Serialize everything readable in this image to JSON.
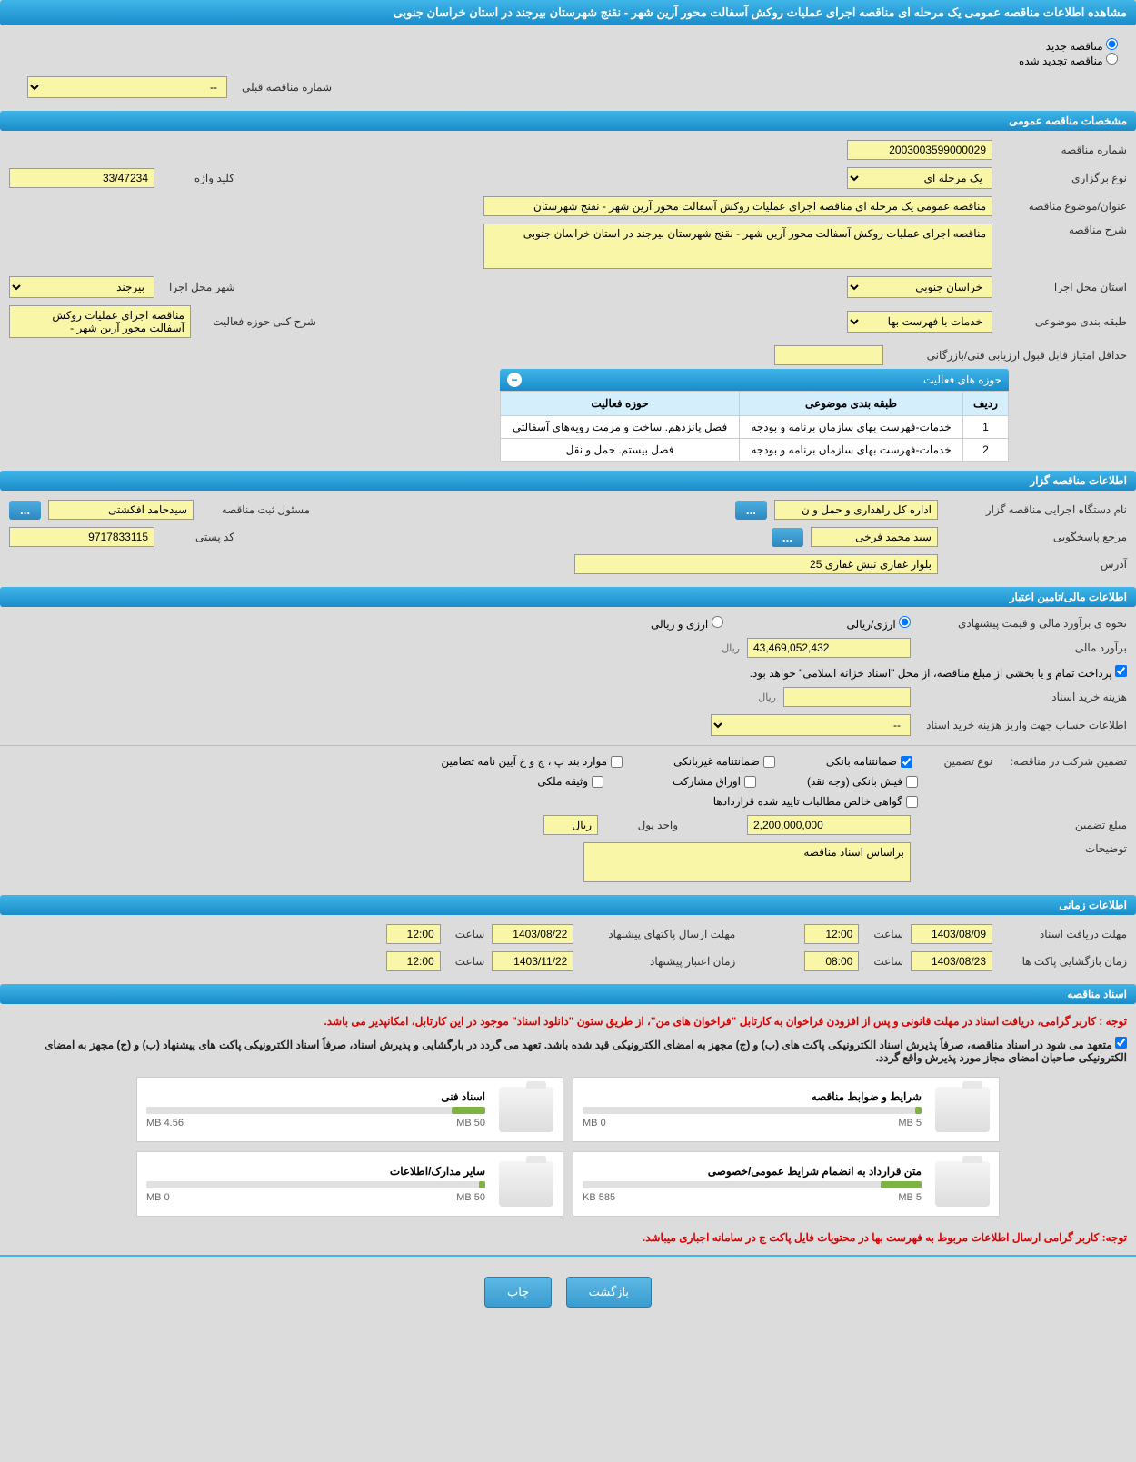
{
  "header_title": "مشاهده اطلاعات مناقصه عمومی یک مرحله ای مناقصه اجرای عملیات روکش آسفالت محور آرین شهر - نقنج شهرستان بیرجند در استان خراسان جنوبی",
  "radio_new": "مناقصه جدید",
  "radio_renewed": "مناقصه تجدید شده",
  "prev_number_label": "شماره مناقصه قبلی",
  "prev_number_value": "--",
  "section_general": "مشخصات مناقصه عمومی",
  "tender_number_label": "شماره مناقصه",
  "tender_number_value": "2003003599000029",
  "holding_type_label": "نوع برگزاری",
  "holding_type_value": "یک مرحله ای",
  "keyword_label": "کلید واژه",
  "keyword_value": "33/47234",
  "subject_label": "عنوان/موضوع مناقصه",
  "subject_value": "مناقصه عمومی یک مرحله ای مناقصه اجرای عملیات روکش آسفالت محور آرین شهر - نقنج شهرستان",
  "description_label": "شرح مناقصه",
  "description_value": "مناقصه اجرای عملیات روکش آسفالت محور آرین شهر - نقنج شهرستان بیرجند در استان خراسان جنوبی",
  "exec_province_label": "استان محل اجرا",
  "exec_province_value": "خراسان جنوبی",
  "exec_city_label": "شهر محل اجرا",
  "exec_city_value": "بیرجند",
  "subject_class_label": "طبقه بندی موضوعی",
  "subject_class_value": "خدمات با فهرست بها",
  "activity_desc_label": "شرح کلی حوزه فعالیت",
  "activity_desc_value": "مناقصه اجرای عملیات روکش آسفالت محور آرین شهر -",
  "min_score_label": "حداقل امتیاز قابل قبول ارزیابی فنی/بازرگانی",
  "activity_table_title": "حوزه های فعالیت",
  "activity_table": {
    "columns": [
      "ردیف",
      "طبقه بندی موضوعی",
      "حوزه فعالیت"
    ],
    "rows": [
      [
        "1",
        "خدمات-فهرست بهای سازمان برنامه و بودجه",
        "فصل پانزدهم. ساخت و مرمت رویه‌های آسفالتی"
      ],
      [
        "2",
        "خدمات-فهرست بهای سازمان برنامه و بودجه",
        "فصل بیستم. حمل و نقل"
      ]
    ]
  },
  "section_organizer": "اطلاعات مناقصه گزار",
  "organizer_name_label": "نام دستگاه اجرایی مناقصه گزار",
  "organizer_name_value": "اداره کل راهداری و حمل و ن",
  "responsible_label": "مسئول ثبت مناقصه",
  "responsible_value": "سیدحامد افکشتی",
  "contact_label": "مرجع پاسخگویی",
  "contact_value": "سید محمد فرخی",
  "postal_label": "کد پستی",
  "postal_value": "9717833115",
  "address_label": "آدرس",
  "address_value": "بلوار غفاری نبش غفاری 25",
  "section_financial": "اطلاعات مالی/تامین اعتبار",
  "estimate_method_label": "نحوه ی برآورد مالی و قیمت پیشنهادی",
  "currency_rial": "ارزی/ریالی",
  "currency_both": "ارزی و ریالی",
  "estimate_label": "برآورد مالی",
  "estimate_value": "43,469,052,432",
  "rial_suffix": "ریال",
  "payment_note": "پرداخت تمام و یا بخشی از مبلغ مناقصه، از محل \"اسناد خزانه اسلامی\" خواهد بود.",
  "doc_cost_label": "هزینه خرید اسناد",
  "account_label": "اطلاعات حساب جهت واریز هزینه خرید اسناد",
  "account_value": "--",
  "guarantee_label": "تضمین شرکت در مناقصه:",
  "guarantee_type_label": "نوع تضمین",
  "guarantee_bank": "ضمانتنامه بانکی",
  "guarantee_nonbank": "ضمانتنامه غیربانکی",
  "guarantee_clauses": "موارد بند پ ، چ و خ آیین نامه تضامین",
  "guarantee_receipt": "فیش بانکی (وجه نقد)",
  "guarantee_stocks": "اوراق مشارکت",
  "guarantee_property": "وثیقه ملکی",
  "guarantee_cert": "گواهی خالص مطالبات تایید شده قراردادها",
  "guarantee_amount_label": "مبلغ تضمین",
  "guarantee_amount_value": "2,200,000,000",
  "currency_unit_label": "واحد پول",
  "currency_unit_value": "ریال",
  "notes_label": "توضیحات",
  "notes_value": "براساس اسناد مناقصه",
  "section_time": "اطلاعات زمانی",
  "deadline_receive_label": "مهلت دریافت اسناد",
  "deadline_receive_date": "1403/08/09",
  "time_label": "ساعت",
  "deadline_receive_time": "12:00",
  "deadline_send_label": "مهلت ارسال پاکتهای پیشنهاد",
  "deadline_send_date": "1403/08/22",
  "deadline_send_time": "12:00",
  "opening_label": "زمان بازگشایی پاکت ها",
  "opening_date": "1403/08/23",
  "opening_time": "08:00",
  "validity_label": "زمان اعتبار پیشنهاد",
  "validity_date": "1403/11/22",
  "validity_time": "12:00",
  "section_docs": "اسناد مناقصه",
  "warning1": "توجه : کاربر گرامی، دریافت اسناد در مهلت قانونی و پس از افزودن فراخوان به کارتابل \"فراخوان های من\"، از طریق ستون \"دانلود اسناد\" موجود در این کارتابل، امکانپذیر می باشد.",
  "warning2": "متعهد می شود در اسناد مناقصه، صرفاً پذیرش اسناد الکترونیکی پاکت های (ب) و (ج) مجهز به امضای الکترونیکی قید شده باشد. تعهد می گردد در بارگشایی و پذیرش اسناد، صرفاً اسناد الکترونیکی پاکت های پیشنهاد (ب) و (ج) مجهز به امضای الکترونیکی صاحبان امضای مجاز مورد پذیرش واقع گردد.",
  "docs": [
    {
      "title": "شرایط و ضوابط مناقصه",
      "size": "0 MB",
      "total": "5 MB",
      "pct": 2
    },
    {
      "title": "اسناد فنی",
      "size": "4.56 MB",
      "total": "50 MB",
      "pct": 10
    },
    {
      "title": "متن قرارداد به انضمام شرایط عمومی/خصوصی",
      "size": "585 KB",
      "total": "5 MB",
      "pct": 12
    },
    {
      "title": "سایر مدارک/اطلاعات",
      "size": "0 MB",
      "total": "50 MB",
      "pct": 2
    }
  ],
  "warning3": "توجه: کاربر گرامی ارسال اطلاعات مربوط به فهرست بها در محتویات فایل پاکت ج در سامانه اجباری میباشد.",
  "btn_back": "بازگشت",
  "btn_print": "چاپ",
  "dots": "..."
}
